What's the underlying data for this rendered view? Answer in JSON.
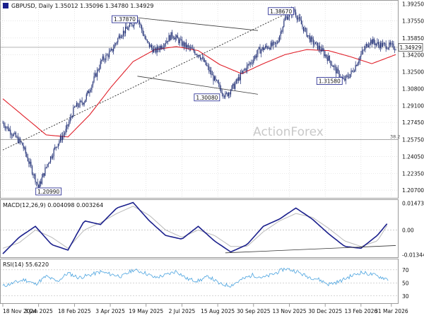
{
  "colors": {
    "candle": "#1b2a72",
    "ma": "#e0202a",
    "macd": "#1a1f8c",
    "signal": "#b9b9b9",
    "rsi": "#4aa3df",
    "channel": "#3b3b3b",
    "trend": "#2b2b2b",
    "grid": "#d4d4d4",
    "price_box": "#1a1f8c",
    "watermark": "#c9c9c9"
  },
  "chart_data": [
    {
      "type": "candlestick",
      "title": "GBPUSD, Daily  1.35012 1.35096 1.34780 1.34929",
      "ylim": [
        1.2,
        1.395
      ],
      "y_ticks": [
        "1.39250",
        "1.37550",
        "1.35850",
        "1.34200",
        "1.32500",
        "1.30800",
        "1.29100",
        "1.27450",
        "1.25750",
        "1.24050",
        "1.22350",
        "1.20700"
      ],
      "y_tick_values": [
        1.3925,
        1.3755,
        1.3585,
        1.342,
        1.325,
        1.308,
        1.291,
        1.2745,
        1.2575,
        1.2405,
        1.2235,
        1.207
      ],
      "x_labels": [
        "18 Nov 2024",
        "3 Jan 2025",
        "18 Feb 2025",
        "3 Apr 2025",
        "19 May 2025",
        "2 Jul 2025",
        "15 Aug 2025",
        "30 Sep 2025",
        "13 Nov 2025",
        "30 Dec 2025",
        "13 Feb 2026",
        "31 Mar 2026"
      ],
      "series": [
        {
          "name": "close",
          "x": [
            0,
            10,
            18,
            25,
            33,
            41,
            50,
            58,
            66,
            75,
            83,
            91,
            100,
            108,
            116,
            124,
            132,
            140,
            148,
            156,
            164,
            172,
            181,
            188,
            196,
            205,
            213,
            222,
            229,
            236,
            244,
            252,
            260,
            268,
            276,
            284,
            292,
            300,
            307,
            314,
            322,
            330,
            338,
            346,
            354,
            362
          ],
          "values": [
            1.274,
            1.262,
            1.252,
            1.232,
            1.2099,
            1.233,
            1.253,
            1.266,
            1.289,
            1.296,
            1.315,
            1.336,
            1.345,
            1.362,
            1.369,
            1.3787,
            1.355,
            1.345,
            1.353,
            1.362,
            1.354,
            1.348,
            1.342,
            1.33,
            1.315,
            1.3008,
            1.311,
            1.326,
            1.335,
            1.346,
            1.35,
            1.352,
            1.378,
            1.3867,
            1.37,
            1.356,
            1.348,
            1.338,
            1.326,
            1.3158,
            1.325,
            1.342,
            1.356,
            1.352,
            1.351,
            1.3493
          ]
        },
        {
          "name": "ma",
          "x": [
            0,
            20,
            40,
            60,
            80,
            100,
            120,
            140,
            160,
            180,
            200,
            220,
            240,
            260,
            280,
            300,
            320,
            340,
            362
          ],
          "values": [
            1.298,
            1.28,
            1.262,
            1.26,
            1.282,
            1.31,
            1.335,
            1.347,
            1.35,
            1.346,
            1.332,
            1.323,
            1.333,
            1.342,
            1.347,
            1.346,
            1.34,
            1.333,
            1.342
          ]
        }
      ],
      "horizontal_line": {
        "value": 1.3493,
        "label": "1.34929"
      },
      "fib_line": {
        "value": 1.2575,
        "label": "38.2"
      },
      "annotations": [
        {
          "text": "1.37870",
          "x": 124,
          "y": 1.3787
        },
        {
          "text": "1.38670",
          "x": 268,
          "y": 1.3867
        },
        {
          "text": "1.31580",
          "x": 314,
          "y": 1.3158
        },
        {
          "text": "1.30080",
          "x": 205,
          "y": 1.3008
        },
        {
          "text": "1.20990",
          "x": 33,
          "y": 1.2099
        }
      ],
      "channel": {
        "upper": [
          [
            124,
            1.3787
          ],
          [
            235,
            1.366
          ]
        ],
        "lower": [
          [
            124,
            1.3205
          ],
          [
            235,
            1.3025
          ]
        ]
      },
      "trend_line": [
        [
          0,
          1.247
        ],
        [
          270,
          1.3875
        ]
      ],
      "watermark": "ActionForex"
    },
    {
      "type": "line",
      "title": "MACD(12,26,9) 0.004098 0.003264",
      "ylim": [
        -0.0145,
        0.016
      ],
      "y_ticks": [
        "0.014734",
        "0.00",
        "-0.013442"
      ],
      "y_tick_values": [
        0.014734,
        0.0,
        -0.013442
      ],
      "series": [
        {
          "name": "MACD",
          "x": [
            0,
            15,
            30,
            45,
            60,
            75,
            90,
            105,
            120,
            135,
            150,
            165,
            180,
            195,
            210,
            225,
            240,
            255,
            270,
            285,
            300,
            315,
            330,
            345,
            355
          ],
          "values": [
            -0.013,
            -0.004,
            0.002,
            -0.008,
            -0.011,
            0.005,
            0.003,
            0.012,
            0.015,
            0.005,
            -0.003,
            -0.005,
            0.002,
            -0.006,
            -0.012,
            -0.008,
            0.002,
            0.006,
            0.012,
            0.006,
            -0.002,
            -0.009,
            -0.01,
            -0.003,
            0.0041
          ]
        },
        {
          "name": "Signal",
          "x": [
            0,
            15,
            30,
            45,
            60,
            75,
            90,
            105,
            120,
            135,
            150,
            165,
            180,
            195,
            210,
            225,
            240,
            255,
            270,
            285,
            300,
            315,
            330,
            345,
            355
          ],
          "values": [
            -0.01,
            -0.007,
            0.0,
            -0.004,
            -0.01,
            0.0,
            0.004,
            0.009,
            0.013,
            0.008,
            0.0,
            -0.004,
            0.0,
            -0.003,
            -0.009,
            -0.009,
            -0.001,
            0.005,
            0.009,
            0.007,
            0.001,
            -0.006,
            -0.009,
            -0.006,
            0.0033
          ]
        }
      ],
      "trend_line": [
        [
          205,
          -0.0125
        ],
        [
          362,
          -0.0085
        ]
      ]
    },
    {
      "type": "line",
      "title": "RSI(14) 55.6220",
      "ylim": [
        20,
        85
      ],
      "y_ticks": [
        "70",
        "50",
        "30"
      ],
      "y_tick_values": [
        70,
        50,
        30
      ],
      "series": [
        {
          "name": "RSI",
          "x": [
            0,
            10,
            20,
            30,
            40,
            50,
            60,
            70,
            80,
            90,
            100,
            110,
            120,
            130,
            140,
            150,
            160,
            170,
            180,
            190,
            200,
            210,
            220,
            230,
            240,
            250,
            260,
            270,
            280,
            290,
            300,
            310,
            320,
            330,
            340,
            350,
            355
          ],
          "values": [
            45,
            50,
            55,
            48,
            60,
            52,
            65,
            58,
            62,
            67,
            63,
            60,
            70,
            66,
            58,
            62,
            68,
            56,
            53,
            60,
            48,
            46,
            55,
            62,
            58,
            64,
            72,
            68,
            60,
            56,
            48,
            52,
            60,
            66,
            63,
            58,
            55.6
          ]
        }
      ]
    }
  ]
}
